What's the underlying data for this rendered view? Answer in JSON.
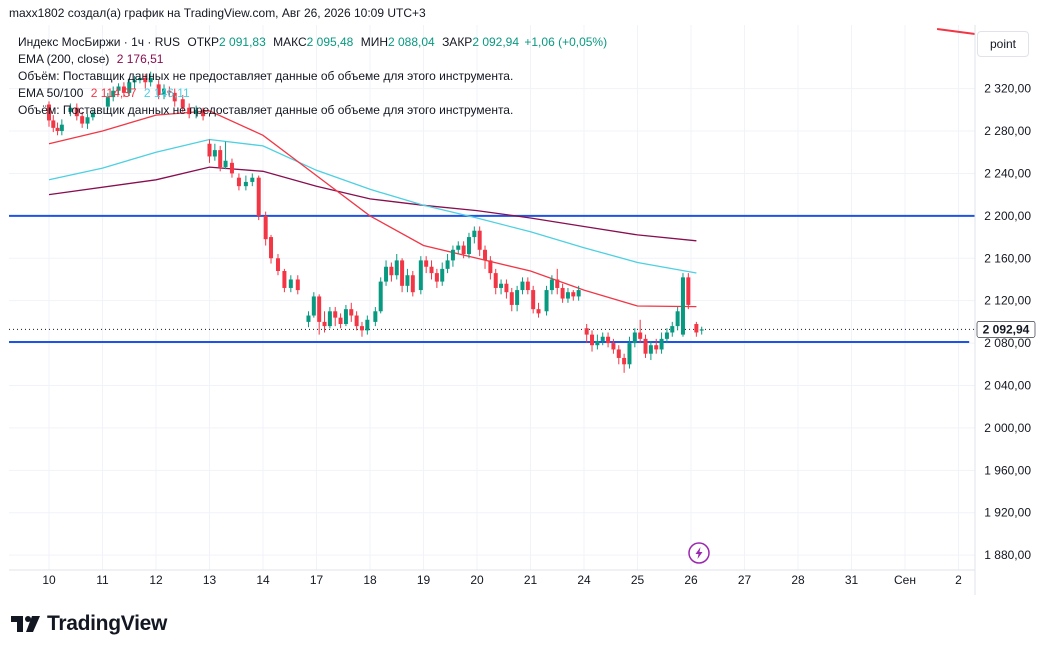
{
  "header": {
    "credit": "maxx1802 создал(а) график на TradingView.com, Авг 26, 2026 10:09 UTC+3"
  },
  "legend": {
    "symbol": "Индекс МосБиржи · 1ч · RUS",
    "open_label": "ОТКР",
    "open_value": "2 091,83",
    "high_label": "МАКС",
    "high_value": "2 095,48",
    "low_label": "МИН",
    "low_value": "2 088,04",
    "close_label": "ЗАКР",
    "close_value": "2 092,94",
    "change": "+1,06 (+0,05%)",
    "volume_note": "Объём: Поставщик данных не предоставляет данные об объеме для этого инструмента.",
    "ema200_label": "EMA (200, close)",
    "ema200_value": "2 176,51",
    "ema50_100_label": "EMA 50/100",
    "ema50_value": "2 114,37",
    "ema100_value": "2 146,11"
  },
  "toolbar": {
    "point_button": "point"
  },
  "price_tag": "2 092,94",
  "footer": {
    "brand": "TradingView"
  },
  "colors": {
    "up": "#089981",
    "down": "#f23645",
    "ema200": "#880e4f",
    "ema50": "#f23645",
    "ema100": "#4dd0e1",
    "hline": "#1e53e5",
    "grid": "#f0f3fa"
  },
  "chart_data": {
    "type": "candlestick",
    "interval": "1h",
    "y_ticks": [
      "2 320,00",
      "2 280,00",
      "2 240,00",
      "2 200,00",
      "2 160,00",
      "2 120,00",
      "2 080,00",
      "2 040,00",
      "2 000,00",
      "1 960,00",
      "1 920,00",
      "1 880,00"
    ],
    "ylim": [
      1866,
      2380
    ],
    "x_ticks": [
      "10",
      "11",
      "12",
      "13",
      "14",
      "17",
      "18",
      "19",
      "20",
      "21",
      "24",
      "25",
      "26",
      "27",
      "28",
      "31",
      "Сен",
      "2"
    ],
    "x_tick_index": [
      0,
      1,
      2,
      3,
      4,
      5,
      6,
      7,
      8,
      9,
      10,
      11,
      12,
      13,
      14,
      15,
      16,
      17
    ],
    "horizontal_lines": [
      2200,
      2081
    ],
    "last_price": 2092.94,
    "ema200": [
      [
        0,
        2220
      ],
      [
        2,
        2234
      ],
      [
        3,
        2246
      ],
      [
        4,
        2242
      ],
      [
        5,
        2228
      ],
      [
        6,
        2216
      ],
      [
        7,
        2210
      ],
      [
        8,
        2205
      ],
      [
        9,
        2198
      ],
      [
        10,
        2190
      ],
      [
        11,
        2182
      ],
      [
        12.1,
        2176.5
      ]
    ],
    "ema100": [
      [
        0,
        2234
      ],
      [
        1,
        2245
      ],
      [
        2,
        2260
      ],
      [
        3,
        2272
      ],
      [
        4,
        2266
      ],
      [
        5,
        2243
      ],
      [
        6,
        2225
      ],
      [
        7,
        2210
      ],
      [
        8,
        2198
      ],
      [
        9,
        2185
      ],
      [
        10,
        2170
      ],
      [
        11,
        2156
      ],
      [
        12.1,
        2146.1
      ]
    ],
    "ema50": [
      [
        0,
        2268
      ],
      [
        1,
        2280
      ],
      [
        2,
        2295
      ],
      [
        3,
        2299
      ],
      [
        4,
        2276
      ],
      [
        5,
        2238
      ],
      [
        6,
        2200
      ],
      [
        7,
        2172
      ],
      [
        8,
        2160
      ],
      [
        9,
        2148
      ],
      [
        10,
        2130
      ],
      [
        11,
        2115
      ],
      [
        12.1,
        2114.4
      ]
    ],
    "candles": [
      [
        0.0,
        2305,
        2290,
        2308,
        2284
      ],
      [
        0.08,
        2290,
        2283,
        2295,
        2279
      ],
      [
        0.16,
        2283,
        2280,
        2288,
        2276
      ],
      [
        0.24,
        2280,
        2286,
        2291,
        2276
      ],
      [
        0.4,
        2298,
        2302,
        2306,
        2294
      ],
      [
        0.52,
        2302,
        2294,
        2306,
        2290
      ],
      [
        0.62,
        2294,
        2287,
        2298,
        2283
      ],
      [
        0.72,
        2287,
        2293,
        2296,
        2282
      ],
      [
        0.82,
        2293,
        2297,
        2300,
        2290
      ],
      [
        1.1,
        2303,
        2312,
        2316,
        2300
      ],
      [
        1.2,
        2312,
        2318,
        2322,
        2308
      ],
      [
        1.3,
        2318,
        2322,
        2325,
        2314
      ],
      [
        1.4,
        2322,
        2316,
        2326,
        2312
      ],
      [
        1.5,
        2316,
        2326,
        2330,
        2313
      ],
      [
        1.6,
        2326,
        2328,
        2332,
        2320
      ],
      [
        1.7,
        2328,
        2330,
        2334,
        2325
      ],
      [
        1.8,
        2330,
        2326,
        2334,
        2320
      ],
      [
        1.9,
        2326,
        2330,
        2336,
        2322
      ],
      [
        2.05,
        2324,
        2314,
        2328,
        2310
      ],
      [
        2.15,
        2314,
        2320,
        2324,
        2310
      ],
      [
        2.25,
        2318,
        2316,
        2322,
        2312
      ],
      [
        2.35,
        2316,
        2308,
        2320,
        2303
      ],
      [
        2.5,
        2310,
        2302,
        2314,
        2298
      ],
      [
        2.62,
        2302,
        2296,
        2306,
        2292
      ],
      [
        2.75,
        2296,
        2300,
        2304,
        2292
      ],
      [
        2.88,
        2300,
        2294,
        2302,
        2290
      ],
      [
        3.0,
        2268,
        2256,
        2272,
        2250
      ],
      [
        3.1,
        2256,
        2262,
        2268,
        2252
      ],
      [
        3.2,
        2262,
        2246,
        2266,
        2242
      ],
      [
        3.3,
        2246,
        2252,
        2270,
        2244
      ],
      [
        3.42,
        2250,
        2240,
        2254,
        2236
      ],
      [
        3.55,
        2236,
        2228,
        2240,
        2224
      ],
      [
        3.68,
        2228,
        2232,
        2238,
        2224
      ],
      [
        3.8,
        2232,
        2236,
        2240,
        2228
      ],
      [
        3.92,
        2236,
        2200,
        2238,
        2196
      ],
      [
        4.05,
        2200,
        2178,
        2204,
        2172
      ],
      [
        4.15,
        2180,
        2160,
        2182,
        2155
      ],
      [
        4.28,
        2160,
        2148,
        2164,
        2144
      ],
      [
        4.4,
        2148,
        2132,
        2150,
        2128
      ],
      [
        4.52,
        2132,
        2140,
        2144,
        2128
      ],
      [
        4.65,
        2140,
        2130,
        2144,
        2126
      ],
      [
        4.85,
        2100,
        2106,
        2110,
        2095
      ],
      [
        4.95,
        2106,
        2124,
        2128,
        2104
      ],
      [
        5.05,
        2124,
        2100,
        2126,
        2088
      ],
      [
        5.15,
        2100,
        2096,
        2110,
        2090
      ],
      [
        5.25,
        2096,
        2110,
        2114,
        2094
      ],
      [
        5.35,
        2110,
        2104,
        2114,
        2096
      ],
      [
        5.45,
        2104,
        2098,
        2108,
        2094
      ],
      [
        5.55,
        2098,
        2112,
        2116,
        2096
      ],
      [
        5.65,
        2112,
        2106,
        2118,
        2100
      ],
      [
        5.75,
        2106,
        2096,
        2110,
        2092
      ],
      [
        5.85,
        2096,
        2092,
        2100,
        2086
      ],
      [
        5.95,
        2092,
        2102,
        2106,
        2088
      ],
      [
        6.1,
        2100,
        2110,
        2114,
        2096
      ],
      [
        6.2,
        2110,
        2138,
        2142,
        2108
      ],
      [
        6.3,
        2138,
        2152,
        2158,
        2134
      ],
      [
        6.4,
        2152,
        2144,
        2156,
        2138
      ],
      [
        6.5,
        2144,
        2158,
        2164,
        2140
      ],
      [
        6.6,
        2158,
        2134,
        2160,
        2128
      ],
      [
        6.7,
        2134,
        2144,
        2150,
        2128
      ],
      [
        6.8,
        2144,
        2128,
        2148,
        2124
      ],
      [
        6.95,
        2130,
        2158,
        2162,
        2126
      ],
      [
        7.05,
        2158,
        2152,
        2162,
        2146
      ],
      [
        7.15,
        2152,
        2146,
        2158,
        2140
      ],
      [
        7.25,
        2146,
        2138,
        2150,
        2132
      ],
      [
        7.35,
        2138,
        2150,
        2156,
        2134
      ],
      [
        7.45,
        2150,
        2158,
        2164,
        2146
      ],
      [
        7.55,
        2158,
        2168,
        2172,
        2152
      ],
      [
        7.65,
        2168,
        2172,
        2176,
        2164
      ],
      [
        7.75,
        2172,
        2164,
        2176,
        2160
      ],
      [
        7.85,
        2164,
        2180,
        2184,
        2160
      ],
      [
        7.95,
        2180,
        2186,
        2190,
        2174
      ],
      [
        8.05,
        2186,
        2168,
        2190,
        2162
      ],
      [
        8.15,
        2168,
        2158,
        2172,
        2150
      ],
      [
        8.25,
        2158,
        2146,
        2162,
        2140
      ],
      [
        8.35,
        2146,
        2132,
        2150,
        2126
      ],
      [
        8.45,
        2132,
        2136,
        2140,
        2126
      ],
      [
        8.55,
        2136,
        2128,
        2140,
        2122
      ],
      [
        8.65,
        2128,
        2116,
        2132,
        2110
      ],
      [
        8.75,
        2116,
        2130,
        2134,
        2110
      ],
      [
        8.85,
        2130,
        2138,
        2142,
        2126
      ],
      [
        8.95,
        2138,
        2130,
        2142,
        2126
      ],
      [
        9.05,
        2130,
        2112,
        2134,
        2108
      ],
      [
        9.15,
        2112,
        2108,
        2118,
        2104
      ],
      [
        9.3,
        2110,
        2130,
        2134,
        2106
      ],
      [
        9.4,
        2130,
        2140,
        2144,
        2126
      ],
      [
        9.5,
        2140,
        2132,
        2150,
        2126
      ],
      [
        9.6,
        2132,
        2122,
        2136,
        2118
      ],
      [
        9.7,
        2122,
        2128,
        2132,
        2118
      ],
      [
        9.8,
        2128,
        2124,
        2130,
        2120
      ],
      [
        9.9,
        2124,
        2130,
        2134,
        2120
      ],
      [
        10.05,
        2094,
        2088,
        2098,
        2080
      ],
      [
        10.15,
        2088,
        2078,
        2092,
        2072
      ],
      [
        10.25,
        2078,
        2082,
        2088,
        2074
      ],
      [
        10.35,
        2082,
        2086,
        2090,
        2078
      ],
      [
        10.45,
        2086,
        2080,
        2090,
        2076
      ],
      [
        10.55,
        2080,
        2074,
        2084,
        2070
      ],
      [
        10.65,
        2074,
        2066,
        2078,
        2060
      ],
      [
        10.75,
        2066,
        2060,
        2070,
        2052
      ],
      [
        10.85,
        2060,
        2080,
        2086,
        2056
      ],
      [
        10.95,
        2080,
        2090,
        2094,
        2076
      ],
      [
        11.05,
        2090,
        2084,
        2102,
        2080
      ],
      [
        11.15,
        2084,
        2070,
        2088,
        2066
      ],
      [
        11.25,
        2070,
        2078,
        2082,
        2064
      ],
      [
        11.35,
        2078,
        2074,
        2084,
        2070
      ],
      [
        11.45,
        2074,
        2084,
        2090,
        2070
      ],
      [
        11.55,
        2084,
        2090,
        2094,
        2080
      ],
      [
        11.65,
        2090,
        2096,
        2100,
        2086
      ],
      [
        11.75,
        2096,
        2110,
        2114,
        2092
      ],
      [
        11.85,
        2088,
        2142,
        2146,
        2086
      ],
      [
        11.95,
        2142,
        2116,
        2146,
        2112
      ],
      [
        12.1,
        2098,
        2090,
        2100,
        2086
      ],
      [
        12.2,
        2091.83,
        2092.94,
        2095.48,
        2088.04
      ]
    ]
  }
}
